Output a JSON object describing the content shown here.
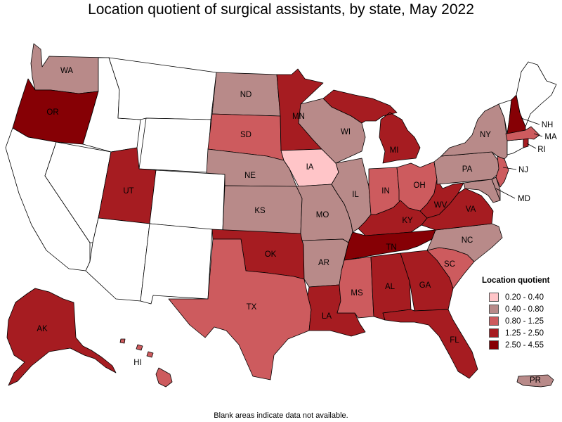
{
  "title": "Location quotient of surgical assistants, by state, May 2022",
  "footnote": "Blank areas indicate data not available.",
  "colors": {
    "blank": "#ffffff",
    "class_1": "#ffc5c8",
    "class_2": "#b88a89",
    "class_3": "#cd5b5e",
    "class_4": "#a61c21",
    "class_5": "#860005"
  },
  "legend": {
    "title": "Location quotient",
    "items": [
      {
        "label": "0.20 - 0.40",
        "color": "#ffc5c8"
      },
      {
        "label": "0.40 - 0.80",
        "color": "#b88a89"
      },
      {
        "label": "0.80 - 1.25",
        "color": "#cd5b5e"
      },
      {
        "label": "1.25 - 2.50",
        "color": "#a61c21"
      },
      {
        "label": "2.50 - 4.55",
        "color": "#860005"
      }
    ]
  },
  "states": {
    "WA": {
      "label": "WA",
      "class": 2
    },
    "OR": {
      "label": "OR",
      "class": 5
    },
    "CA": {
      "label": "",
      "class": 0
    },
    "NV": {
      "label": "",
      "class": 0
    },
    "ID": {
      "label": "",
      "class": 0
    },
    "MT": {
      "label": "",
      "class": 0
    },
    "WY": {
      "label": "",
      "class": 0
    },
    "UT": {
      "label": "UT",
      "class": 4
    },
    "AZ": {
      "label": "",
      "class": 0
    },
    "CO": {
      "label": "",
      "class": 0
    },
    "NM": {
      "label": "",
      "class": 0
    },
    "ND": {
      "label": "ND",
      "class": 2
    },
    "SD": {
      "label": "SD",
      "class": 3
    },
    "NE": {
      "label": "NE",
      "class": 2
    },
    "KS": {
      "label": "KS",
      "class": 2
    },
    "OK": {
      "label": "OK",
      "class": 4
    },
    "TX": {
      "label": "TX",
      "class": 3
    },
    "MN": {
      "label": "MN",
      "class": 4
    },
    "IA": {
      "label": "IA",
      "class": 1
    },
    "MO": {
      "label": "MO",
      "class": 2
    },
    "AR": {
      "label": "AR",
      "class": 2
    },
    "LA": {
      "label": "LA",
      "class": 4
    },
    "WI": {
      "label": "WI",
      "class": 2
    },
    "IL": {
      "label": "IL",
      "class": 2
    },
    "MI": {
      "label": "MI",
      "class": 4
    },
    "IN": {
      "label": "IN",
      "class": 3
    },
    "OH": {
      "label": "OH",
      "class": 3
    },
    "KY": {
      "label": "KY",
      "class": 4
    },
    "TN": {
      "label": "TN",
      "class": 5
    },
    "MS": {
      "label": "MS",
      "class": 3
    },
    "AL": {
      "label": "AL",
      "class": 4
    },
    "GA": {
      "label": "GA",
      "class": 4
    },
    "FL": {
      "label": "FL",
      "class": 4
    },
    "SC": {
      "label": "SC",
      "class": 3
    },
    "NC": {
      "label": "NC",
      "class": 2
    },
    "VA": {
      "label": "VA",
      "class": 4
    },
    "WV": {
      "label": "WV",
      "class": 4
    },
    "PA": {
      "label": "PA",
      "class": 2
    },
    "NY": {
      "label": "NY",
      "class": 2
    },
    "NJ": {
      "label": "NJ",
      "class": 3
    },
    "MD": {
      "label": "MD",
      "class": 2
    },
    "DE": {
      "label": "",
      "class": 2
    },
    "CT": {
      "label": "",
      "class": 0
    },
    "RI": {
      "label": "RI",
      "class": 4
    },
    "MA": {
      "label": "MA",
      "class": 3
    },
    "VT": {
      "label": "",
      "class": 0
    },
    "NH": {
      "label": "NH",
      "class": 5
    },
    "ME": {
      "label": "",
      "class": 0
    },
    "AK": {
      "label": "AK",
      "class": 4
    },
    "HI": {
      "label": "HI",
      "class": 3
    },
    "PR": {
      "label": "PR",
      "class": 2
    }
  }
}
